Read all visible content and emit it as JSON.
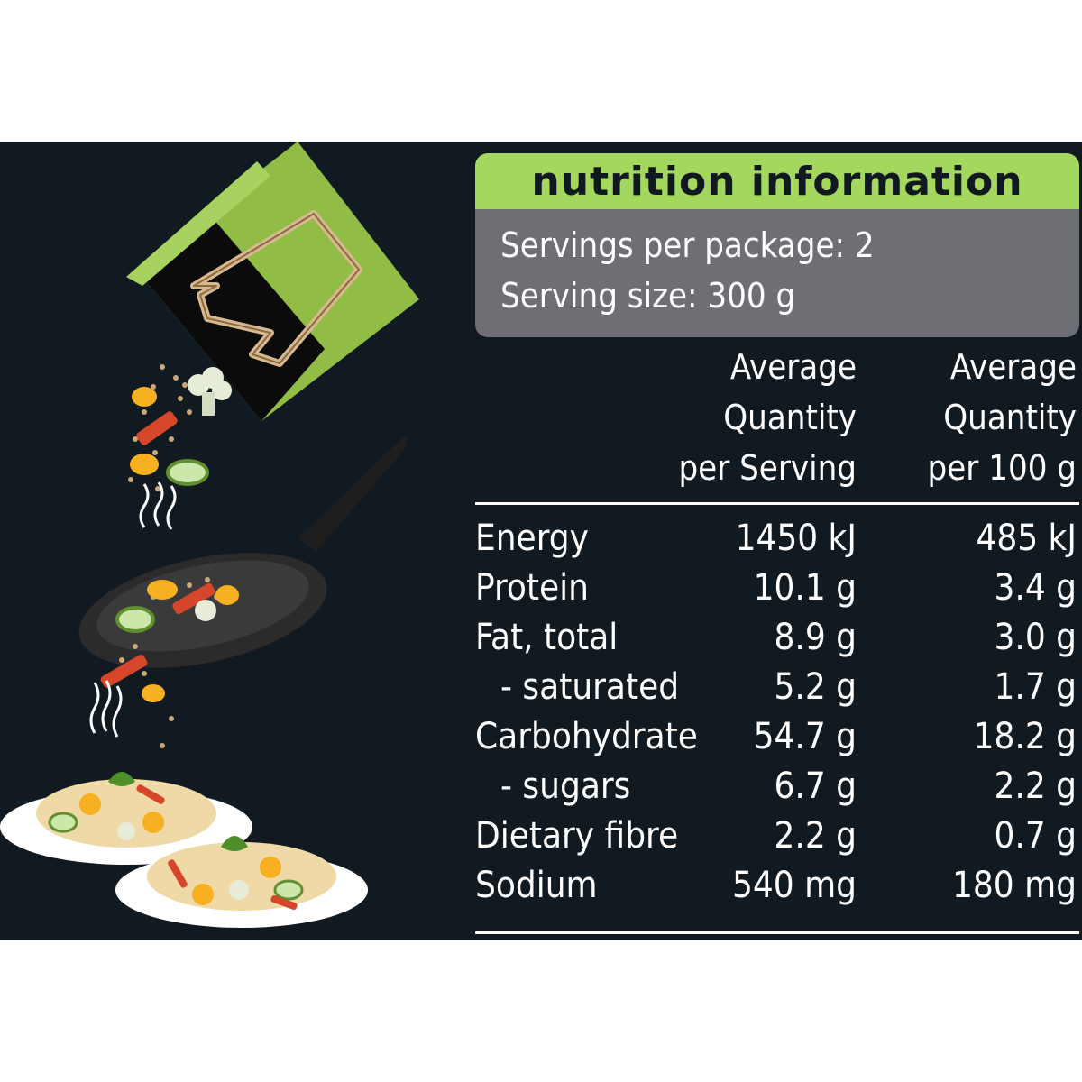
{
  "panel": {
    "title": "nutrition information",
    "servings_per_package": "Servings per package: 2",
    "serving_size": "Serving size: 300 g"
  },
  "columns": {
    "per_serving": [
      "Average",
      "Quantity",
      "per Serving"
    ],
    "per_100g": [
      "Average",
      "Quantity",
      "per 100 g"
    ]
  },
  "rows": [
    {
      "label": "Energy",
      "per_serving": "1450 kJ",
      "per_100g": "485 kJ"
    },
    {
      "label": "Protein",
      "per_serving": "10.1 g",
      "per_100g": "3.4 g"
    },
    {
      "label": "Fat, total",
      "per_serving": "8.9 g",
      "per_100g": "3.0 g"
    },
    {
      "label": "- saturated",
      "per_serving": "5.2 g",
      "per_100g": "1.7 g"
    },
    {
      "label": "Carbohydrate",
      "per_serving": "54.7 g",
      "per_100g": "18.2 g"
    },
    {
      "label": "- sugars",
      "per_serving": "6.7 g",
      "per_100g": "2.2 g"
    },
    {
      "label": "Dietary fibre",
      "per_serving": "2.2 g",
      "per_100g": "0.7 g"
    },
    {
      "label": "Sodium",
      "per_serving": "540 mg",
      "per_100g": "180 mg"
    }
  ],
  "colors": {
    "background": "#121a21",
    "title_bar": "#a3d75d",
    "servings_box": "#6d6f74",
    "text": "#ffffff"
  },
  "illustration": {
    "icons": [
      "food-package-icon",
      "vegetables-icon",
      "frying-pan-icon",
      "rice-plate-icon"
    ]
  }
}
